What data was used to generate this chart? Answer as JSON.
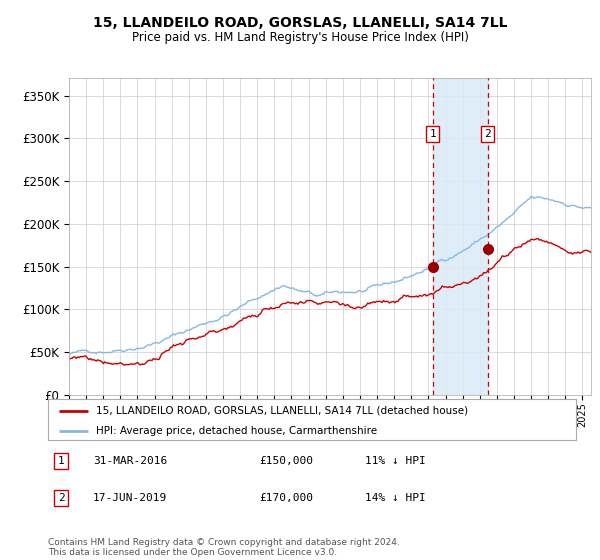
{
  "title": "15, LLANDEILO ROAD, GORSLAS, LLANELLI, SA14 7LL",
  "subtitle": "Price paid vs. HM Land Registry's House Price Index (HPI)",
  "ylabel_ticks": [
    "£0",
    "£50K",
    "£100K",
    "£150K",
    "£200K",
    "£250K",
    "£300K",
    "£350K"
  ],
  "ytick_values": [
    0,
    50000,
    100000,
    150000,
    200000,
    250000,
    300000,
    350000
  ],
  "ylim": [
    0,
    370000
  ],
  "xlim_start": 1995.0,
  "xlim_end": 2025.5,
  "hpi_color": "#88b8e0",
  "price_color": "#cc0000",
  "marker_color": "#990000",
  "vline_color": "#cc0000",
  "shade_color": "#daeaf7",
  "purchase1_x": 2016.25,
  "purchase1_y": 150000,
  "purchase2_x": 2019.46,
  "purchase2_y": 170000,
  "legend_label1": "15, LLANDEILO ROAD, GORSLAS, LLANELLI, SA14 7LL (detached house)",
  "legend_label2": "HPI: Average price, detached house, Carmarthenshire",
  "table_row1": [
    "1",
    "31-MAR-2016",
    "£150,000",
    "11% ↓ HPI"
  ],
  "table_row2": [
    "2",
    "17-JUN-2019",
    "£170,000",
    "14% ↓ HPI"
  ],
  "footnote": "Contains HM Land Registry data © Crown copyright and database right 2024.\nThis data is licensed under the Open Government Licence v3.0.",
  "background_color": "#ffffff",
  "grid_color": "#cccccc"
}
